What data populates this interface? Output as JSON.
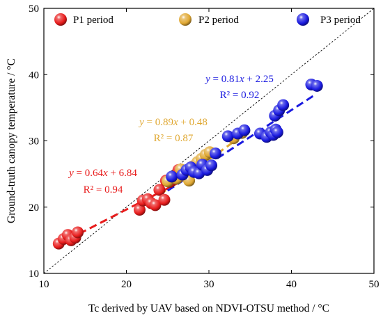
{
  "chart_data": {
    "type": "scatter",
    "xlabel": "Tc derived by UAV based on NDVI-OTSU method / °C",
    "ylabel": "Ground-truth canopy temperature / °C",
    "xlim": [
      10,
      50
    ],
    "ylim": [
      10,
      50
    ],
    "xticks": [
      10,
      20,
      30,
      40,
      50
    ],
    "yticks": [
      10,
      20,
      30,
      40,
      50
    ],
    "grid": false,
    "legend_position": "top",
    "reference_line": {
      "style": "dotted",
      "points": [
        [
          10,
          10
        ],
        [
          50,
          50
        ]
      ]
    },
    "series": [
      {
        "name": "P1 period",
        "color": "#e81c1c",
        "points": [
          [
            11.8,
            14.5
          ],
          [
            12.4,
            15.2
          ],
          [
            12.9,
            15.8
          ],
          [
            13.3,
            15.0
          ],
          [
            13.8,
            15.4
          ],
          [
            14.1,
            16.2
          ],
          [
            21.6,
            19.6
          ],
          [
            22.0,
            21.0
          ],
          [
            22.6,
            21.2
          ],
          [
            23.0,
            20.6
          ],
          [
            23.5,
            20.3
          ],
          [
            24.0,
            22.6
          ],
          [
            24.6,
            21.1
          ],
          [
            24.8,
            24.0
          ],
          [
            25.3,
            23.8
          ],
          [
            25.9,
            24.7
          ],
          [
            26.3,
            25.6
          ]
        ],
        "fit": {
          "slope": 0.64,
          "intercept": 6.84,
          "x_range": [
            13,
            27
          ]
        },
        "equation": {
          "prefix": "y",
          "rest": " = 0.64",
          "var": "x",
          "tail": " + 6.84",
          "r2": "R² = 0.94"
        }
      },
      {
        "name": "P2 period",
        "color": "#e0a832",
        "points": [
          [
            25.0,
            23.9
          ],
          [
            26.1,
            24.3
          ],
          [
            26.6,
            25.7
          ],
          [
            27.2,
            24.6
          ],
          [
            27.6,
            24.0
          ],
          [
            28.1,
            26.2
          ],
          [
            28.6,
            26.8
          ],
          [
            29.1,
            27.3
          ],
          [
            29.6,
            27.9
          ],
          [
            30.1,
            28.3
          ],
          [
            33.0,
            30.4
          ],
          [
            34.0,
            31.2
          ]
        ],
        "fit": {
          "slope": 0.89,
          "intercept": 0.48,
          "x_range": [
            24,
            34
          ]
        },
        "equation": {
          "prefix": "y",
          "rest": " = 0.89",
          "var": "x",
          "tail": " + 0.48",
          "r2": "R² = 0.87"
        }
      },
      {
        "name": "P3 period",
        "color": "#1a1ae0",
        "points": [
          [
            25.5,
            24.6
          ],
          [
            26.8,
            24.9
          ],
          [
            27.3,
            25.6
          ],
          [
            27.8,
            26.0
          ],
          [
            28.2,
            25.3
          ],
          [
            28.8,
            25.1
          ],
          [
            29.2,
            26.4
          ],
          [
            29.8,
            25.6
          ],
          [
            30.3,
            26.3
          ],
          [
            30.8,
            28.1
          ],
          [
            32.3,
            30.7
          ],
          [
            33.5,
            31.1
          ],
          [
            34.3,
            31.6
          ],
          [
            36.2,
            31.1
          ],
          [
            37.0,
            30.6
          ],
          [
            37.5,
            31.3
          ],
          [
            37.8,
            30.9
          ],
          [
            38.1,
            31.7
          ],
          [
            38.3,
            31.3
          ],
          [
            38.0,
            33.8
          ],
          [
            38.5,
            34.6
          ],
          [
            39.0,
            35.4
          ],
          [
            42.4,
            38.5
          ],
          [
            43.1,
            38.3
          ]
        ],
        "fit": {
          "slope": 0.81,
          "intercept": 2.25,
          "x_range": [
            25,
            43
          ]
        },
        "equation": {
          "prefix": "y",
          "rest": " = 0.81",
          "var": "x",
          "tail": " + 2.25",
          "r2": "R² = 0.92"
        }
      }
    ]
  }
}
